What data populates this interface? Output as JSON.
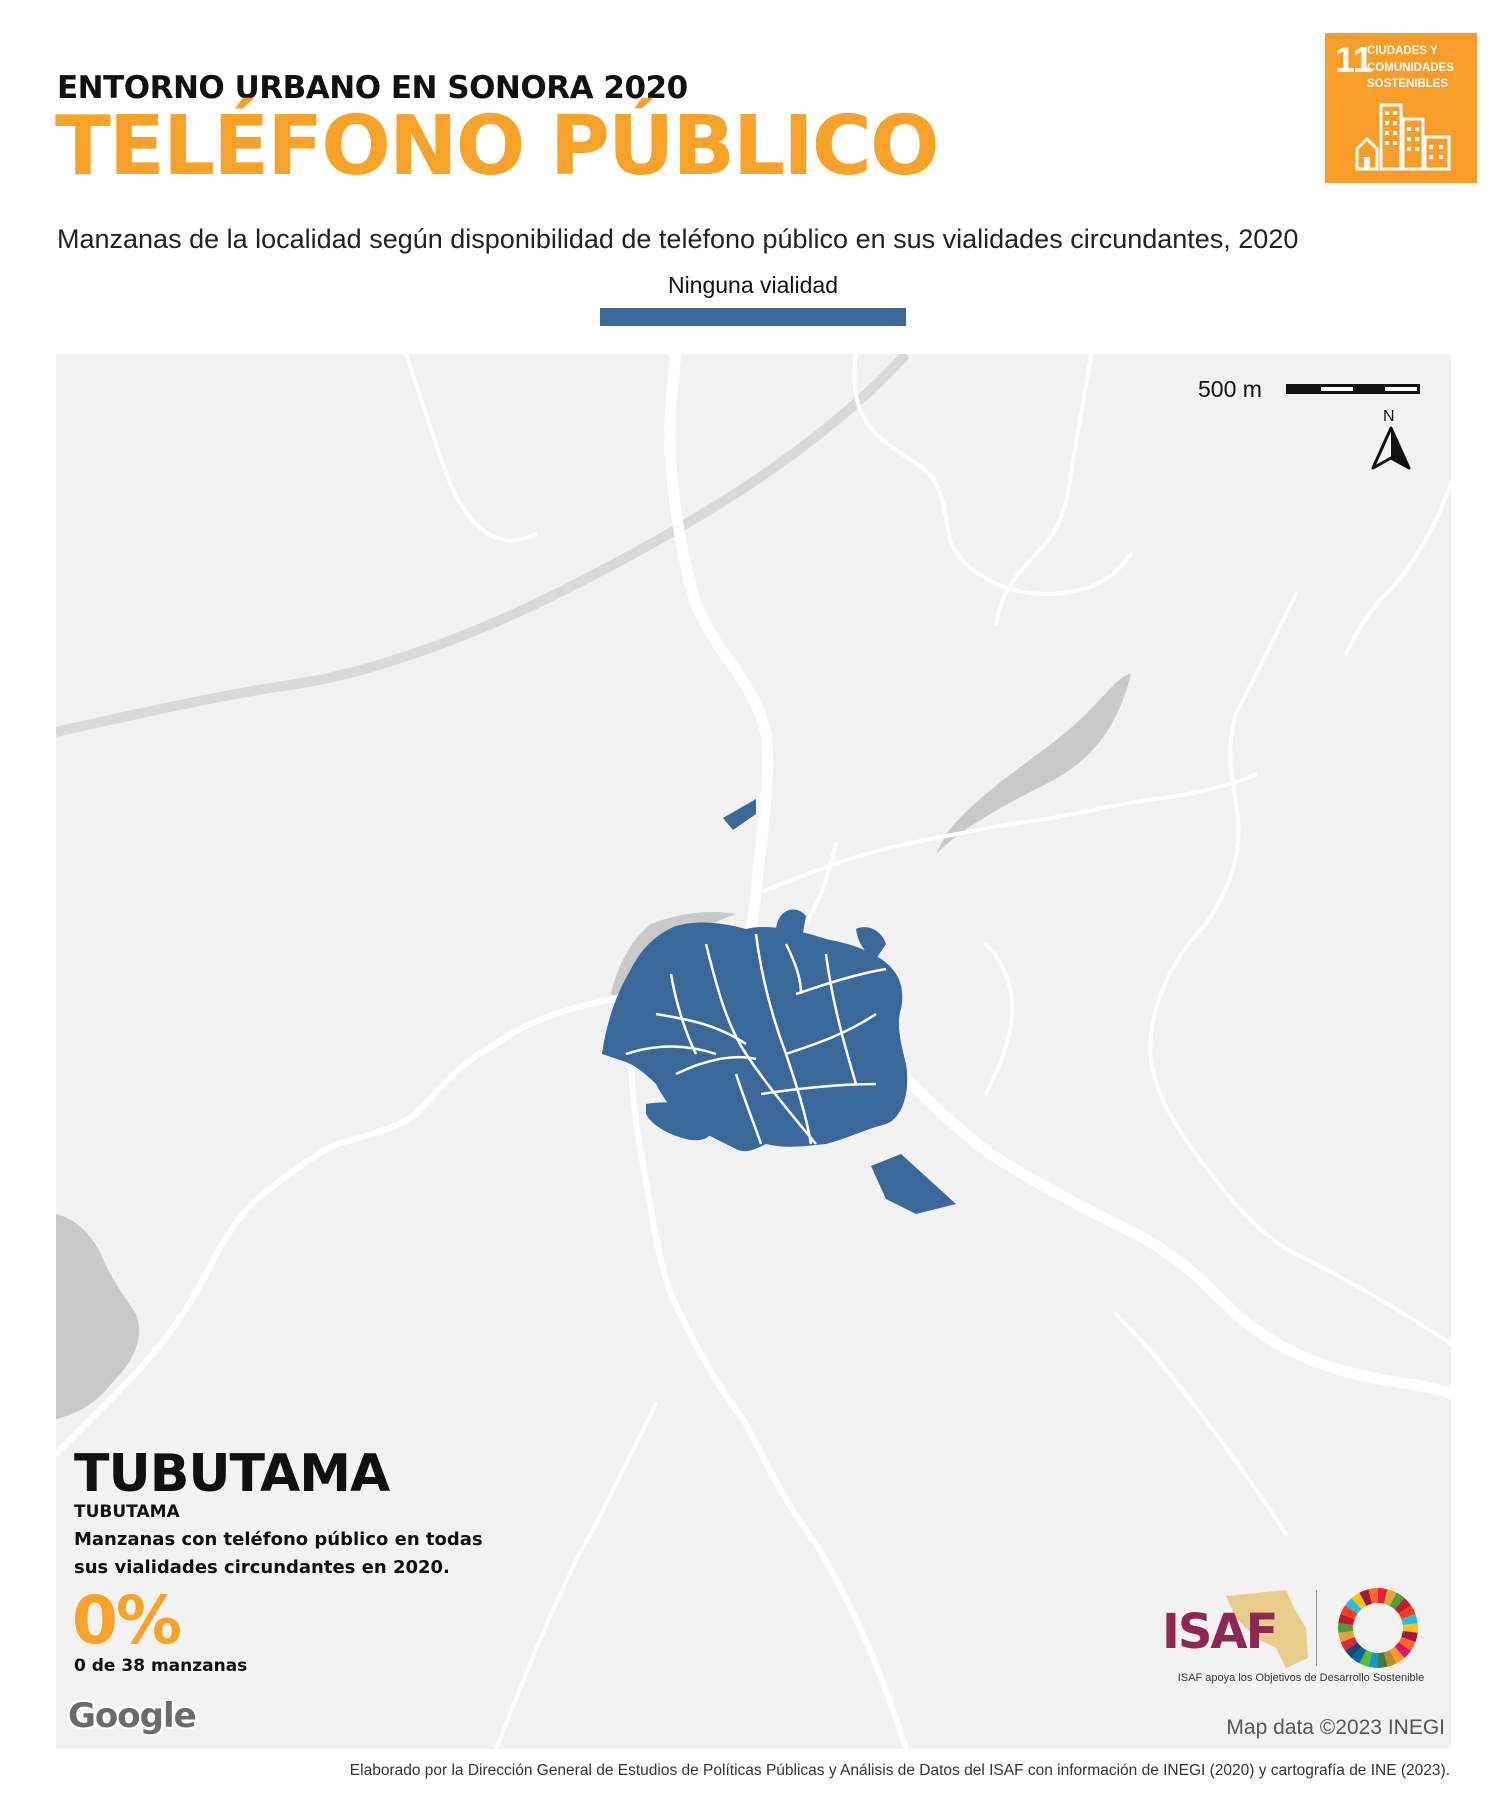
{
  "header": {
    "supertitle": "ENTORNO URBANO EN SONORA 2020",
    "title": "TELÉFONO PÚBLICO",
    "subtitle": "Manzanas de la localidad según disponibilidad de teléfono público en sus vialidades circundantes, 2020"
  },
  "legend": {
    "label": "Ninguna vialidad",
    "color": "#3a6898"
  },
  "sdg_badge": {
    "number": "11",
    "text": "CIUDADES Y COMUNIDADES SOSTENIBLES",
    "color": "#f89d2a"
  },
  "map": {
    "scale_label": "500 m",
    "north_label": "N",
    "attribution": "Map data ©2023 INEGI",
    "logo": "Google",
    "block_color": "#3a6898",
    "water_color": "#c9c9c9",
    "road_color": "#ffffff",
    "background_color": "#f2f2f2"
  },
  "locality": {
    "name": "TUBUTAMA",
    "municipality": "TUBUTAMA",
    "description": "Manzanas con teléfono público en todas sus vialidades circundantes en 2020.",
    "percentage": "0%",
    "count_text": "0 de 38 manzanas"
  },
  "branding": {
    "isaf_text": "ISAF",
    "isaf_tagline": "ISAF apoya los Objetivos de Desarrollo Sostenible"
  },
  "footer": {
    "credit": "Elaborado por la Dirección General de Estudios de Políticas Públicas y Análisis de Datos del ISAF con información de INEGI (2020) y cartografía de INE (2023)."
  }
}
